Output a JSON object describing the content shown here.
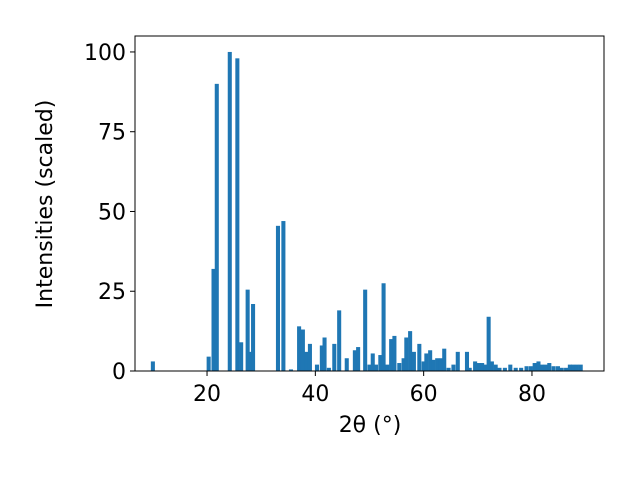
{
  "chart_data": {
    "type": "bar",
    "xlabel": "2θ (°)",
    "ylabel": "Intensities (scaled)",
    "color": "#1f77b4",
    "x": [
      10.0,
      20.3,
      21.2,
      21.8,
      24.2,
      25.6,
      26.3,
      27.5,
      28.0,
      28.5,
      33.1,
      34.1,
      35.5,
      37.0,
      37.7,
      38.3,
      39.0,
      40.3,
      41.2,
      41.7,
      42.5,
      43.5,
      44.4,
      45.8,
      47.3,
      47.9,
      49.2,
      50.0,
      50.6,
      51.2,
      52.0,
      52.6,
      53.3,
      54.0,
      54.6,
      55.5,
      56.3,
      56.8,
      57.5,
      58.2,
      59.2,
      60.0,
      60.5,
      61.2,
      61.8,
      62.5,
      63.2,
      63.8,
      64.6,
      65.5,
      66.3,
      68.0,
      68.5,
      69.5,
      70.2,
      70.8,
      71.5,
      72.0,
      72.6,
      73.3,
      74.0,
      75.0,
      76.0,
      77.0,
      78.0,
      79.0,
      79.8,
      80.5,
      81.2,
      81.8,
      82.5,
      83.2,
      84.0,
      84.8,
      85.5,
      86.3,
      87.0,
      87.6,
      88.3,
      89.0
    ],
    "values": [
      3,
      4.5,
      32,
      90,
      100,
      98,
      9,
      25.5,
      6,
      21,
      45.5,
      47,
      0.5,
      14,
      13,
      6,
      8.5,
      2,
      8,
      10.5,
      1,
      8.5,
      19,
      4,
      6.5,
      7.5,
      25.5,
      2,
      5.5,
      2,
      5,
      27.5,
      2,
      10,
      11,
      2.5,
      4,
      10.5,
      12.5,
      6,
      8.5,
      3,
      5.5,
      6.5,
      3.5,
      4,
      4,
      7,
      1,
      2,
      6,
      6,
      1,
      3,
      2.5,
      2.5,
      2,
      17,
      3,
      2,
      1,
      1,
      2,
      1,
      1,
      1.5,
      1.5,
      2.5,
      3,
      2,
      2,
      2.5,
      1.5,
      1.5,
      1,
      1,
      2,
      2,
      2,
      2
    ],
    "xlim": [
      6.7,
      93.3
    ],
    "ylim": [
      0,
      105
    ],
    "xticks": [
      20,
      40,
      60,
      80
    ],
    "yticks": [
      0,
      25,
      50,
      75,
      100
    ]
  }
}
